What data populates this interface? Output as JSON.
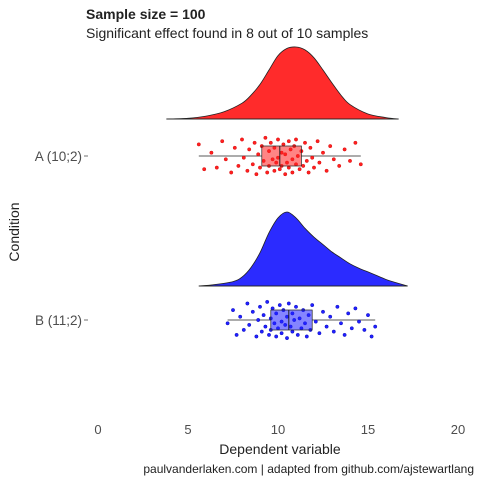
{
  "chart_data": {
    "type": "raincloud",
    "title": "Sample size = 100",
    "subtitle": "Significant effect found in 8 out of 10 samples",
    "xlabel": "Dependent variable",
    "ylabel": "Condition",
    "caption": "paulvanderlaken.com | adapted from github.com/ajstewartlang",
    "xlim": [
      -1,
      21
    ],
    "xticks": [
      0,
      5,
      10,
      15,
      20
    ],
    "grid": false,
    "legend": "none",
    "groups": [
      {
        "label": "A (10;2)",
        "color": "#ff2020",
        "outline": "#cc0000",
        "density": {
          "x": [
            3.8,
            5.0,
            6.0,
            7.0,
            8.0,
            8.5,
            9.0,
            9.5,
            10.0,
            10.5,
            11.0,
            11.5,
            12.0,
            12.5,
            13.0,
            13.5,
            14.0,
            15.0,
            16.0,
            16.7
          ],
          "y": [
            0.0,
            0.01,
            0.04,
            0.1,
            0.22,
            0.33,
            0.48,
            0.68,
            0.88,
            0.98,
            1.0,
            0.96,
            0.85,
            0.68,
            0.5,
            0.33,
            0.2,
            0.07,
            0.02,
            0.0
          ]
        },
        "box": {
          "whisker_low": 5.6,
          "q1": 9.1,
          "median": 10.1,
          "q3": 11.3,
          "whisker_high": 14.6
        },
        "points": [
          [
            5.6,
            -0.35
          ],
          [
            5.9,
            0.4
          ],
          [
            6.3,
            -0.1
          ],
          [
            6.6,
            0.35
          ],
          [
            6.9,
            -0.45
          ],
          [
            7.1,
            0.1
          ],
          [
            7.4,
            0.5
          ],
          [
            7.6,
            -0.25
          ],
          [
            7.8,
            0.3
          ],
          [
            8.0,
            -0.5
          ],
          [
            8.1,
            0.05
          ],
          [
            8.3,
            0.45
          ],
          [
            8.4,
            -0.2
          ],
          [
            8.6,
            0.25
          ],
          [
            8.7,
            -0.4
          ],
          [
            8.8,
            0.55
          ],
          [
            8.9,
            -0.05
          ],
          [
            9.0,
            0.35
          ],
          [
            9.1,
            -0.3
          ],
          [
            9.2,
            0.15
          ],
          [
            9.3,
            -0.55
          ],
          [
            9.4,
            0.5
          ],
          [
            9.5,
            -0.15
          ],
          [
            9.5,
            0.3
          ],
          [
            9.6,
            -0.4
          ],
          [
            9.7,
            0.1
          ],
          [
            9.8,
            0.45
          ],
          [
            9.8,
            -0.25
          ],
          [
            9.9,
            0.2
          ],
          [
            10.0,
            -0.5
          ],
          [
            10.0,
            0.05
          ],
          [
            10.1,
            0.4
          ],
          [
            10.2,
            -0.1
          ],
          [
            10.2,
            0.3
          ],
          [
            10.3,
            -0.35
          ],
          [
            10.4,
            0.55
          ],
          [
            10.4,
            -0.05
          ],
          [
            10.5,
            0.2
          ],
          [
            10.6,
            -0.45
          ],
          [
            10.6,
            0.35
          ],
          [
            10.7,
            -0.2
          ],
          [
            10.8,
            0.1
          ],
          [
            10.8,
            0.5
          ],
          [
            10.9,
            -0.3
          ],
          [
            11.0,
            0.25
          ],
          [
            11.0,
            -0.5
          ],
          [
            11.1,
            0.0
          ],
          [
            11.2,
            0.4
          ],
          [
            11.3,
            -0.15
          ],
          [
            11.4,
            0.3
          ],
          [
            11.5,
            -0.4
          ],
          [
            11.6,
            0.15
          ],
          [
            11.7,
            0.5
          ],
          [
            11.8,
            -0.25
          ],
          [
            11.9,
            0.05
          ],
          [
            12.0,
            0.35
          ],
          [
            12.2,
            -0.45
          ],
          [
            12.3,
            0.2
          ],
          [
            12.5,
            -0.1
          ],
          [
            12.7,
            0.45
          ],
          [
            12.9,
            -0.3
          ],
          [
            13.1,
            0.1
          ],
          [
            13.4,
            0.3
          ],
          [
            13.7,
            -0.2
          ],
          [
            14.0,
            0.15
          ],
          [
            14.3,
            -0.4
          ],
          [
            14.6,
            0.25
          ]
        ]
      },
      {
        "label": "B (11;2)",
        "color": "#2020ff",
        "outline": "#0000aa",
        "density": {
          "x": [
            5.6,
            6.5,
            7.5,
            8.0,
            8.5,
            9.0,
            9.5,
            10.0,
            10.5,
            11.0,
            11.5,
            12.0,
            12.5,
            13.0,
            13.5,
            14.0,
            14.5,
            15.0,
            15.5,
            16.2,
            17.2
          ],
          "y": [
            0.0,
            0.02,
            0.06,
            0.12,
            0.25,
            0.45,
            0.72,
            0.92,
            1.0,
            0.92,
            0.78,
            0.66,
            0.56,
            0.46,
            0.38,
            0.3,
            0.24,
            0.19,
            0.14,
            0.07,
            0.0
          ]
        },
        "box": {
          "whisker_low": 7.2,
          "q1": 9.6,
          "median": 10.6,
          "q3": 11.9,
          "whisker_high": 15.4
        },
        "points": [
          [
            7.2,
            0.1
          ],
          [
            7.5,
            -0.3
          ],
          [
            7.7,
            0.45
          ],
          [
            7.9,
            -0.1
          ],
          [
            8.1,
            0.3
          ],
          [
            8.3,
            -0.5
          ],
          [
            8.4,
            0.15
          ],
          [
            8.6,
            -0.25
          ],
          [
            8.8,
            0.5
          ],
          [
            8.9,
            0.0
          ],
          [
            9.0,
            -0.4
          ],
          [
            9.1,
            0.35
          ],
          [
            9.2,
            -0.15
          ],
          [
            9.3,
            0.2
          ],
          [
            9.4,
            -0.55
          ],
          [
            9.5,
            0.45
          ],
          [
            9.6,
            -0.05
          ],
          [
            9.6,
            0.3
          ],
          [
            9.7,
            -0.35
          ],
          [
            9.8,
            0.1
          ],
          [
            9.9,
            0.5
          ],
          [
            9.9,
            -0.2
          ],
          [
            10.0,
            0.25
          ],
          [
            10.1,
            -0.45
          ],
          [
            10.2,
            0.05
          ],
          [
            10.2,
            0.4
          ],
          [
            10.3,
            -0.3
          ],
          [
            10.4,
            0.15
          ],
          [
            10.5,
            -0.1
          ],
          [
            10.5,
            0.55
          ],
          [
            10.6,
            -0.5
          ],
          [
            10.7,
            0.2
          ],
          [
            10.8,
            -0.2
          ],
          [
            10.8,
            0.35
          ],
          [
            10.9,
            0.0
          ],
          [
            11.0,
            -0.4
          ],
          [
            11.1,
            0.45
          ],
          [
            11.2,
            -0.05
          ],
          [
            11.3,
            0.25
          ],
          [
            11.4,
            -0.3
          ],
          [
            11.5,
            0.1
          ],
          [
            11.6,
            0.5
          ],
          [
            11.7,
            -0.15
          ],
          [
            11.8,
            0.3
          ],
          [
            11.9,
            -0.45
          ],
          [
            12.1,
            0.05
          ],
          [
            12.3,
            0.4
          ],
          [
            12.5,
            -0.25
          ],
          [
            12.7,
            0.2
          ],
          [
            12.9,
            -0.1
          ],
          [
            13.1,
            0.35
          ],
          [
            13.3,
            -0.4
          ],
          [
            13.5,
            0.1
          ],
          [
            13.7,
            0.45
          ],
          [
            13.9,
            -0.2
          ],
          [
            14.1,
            0.25
          ],
          [
            14.3,
            -0.35
          ],
          [
            14.5,
            0.05
          ],
          [
            14.8,
            0.3
          ],
          [
            15.0,
            -0.15
          ],
          [
            15.2,
            0.5
          ],
          [
            15.4,
            0.2
          ]
        ]
      }
    ]
  }
}
